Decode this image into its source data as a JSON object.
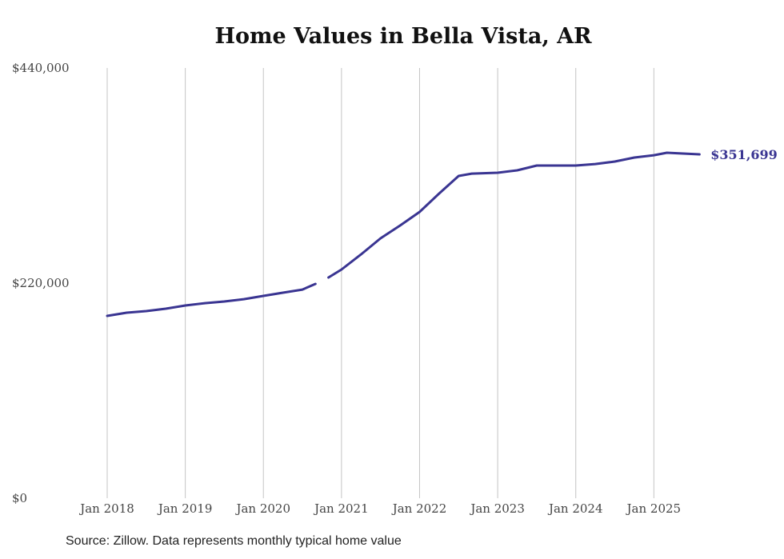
{
  "chart_data": {
    "type": "line",
    "title": "Home Values in Bella Vista, AR",
    "xlabel": "",
    "ylabel": "",
    "ylim": [
      0,
      440000
    ],
    "yticks": [
      0,
      220000,
      440000
    ],
    "ytick_labels": [
      "$0",
      "$220,000",
      "$440,000"
    ],
    "xticks": [
      "2018-01",
      "2019-01",
      "2020-01",
      "2021-01",
      "2022-01",
      "2023-01",
      "2024-01",
      "2025-01"
    ],
    "xtick_labels": [
      "Jan 2018",
      "Jan 2019",
      "Jan 2020",
      "Jan 2021",
      "Jan 2022",
      "Jan 2023",
      "Jan 2024",
      "Jan 2025"
    ],
    "grid": "vertical",
    "series": [
      {
        "name": "Typical home value",
        "color": "#3a3592",
        "points": [
          [
            "2018-01",
            186500
          ],
          [
            "2018-04",
            189700
          ],
          [
            "2018-07",
            191400
          ],
          [
            "2018-10",
            193800
          ],
          [
            "2019-01",
            197100
          ],
          [
            "2019-04",
            199500
          ],
          [
            "2019-07",
            201200
          ],
          [
            "2019-10",
            203600
          ],
          [
            "2020-01",
            206900
          ],
          [
            "2020-04",
            210200
          ],
          [
            "2020-07",
            213400
          ],
          [
            "2020-09",
            219200
          ],
          [
            "2020-10",
            null
          ],
          [
            "2020-11",
            225700
          ],
          [
            "2021-01",
            233900
          ],
          [
            "2021-04",
            249400
          ],
          [
            "2021-07",
            265800
          ],
          [
            "2021-10",
            278900
          ],
          [
            "2022-01",
            292800
          ],
          [
            "2022-04",
            311600
          ],
          [
            "2022-07",
            329600
          ],
          [
            "2022-09",
            332000
          ],
          [
            "2023-01",
            332900
          ],
          [
            "2023-04",
            335300
          ],
          [
            "2023-07",
            340200
          ],
          [
            "2024-01",
            340200
          ],
          [
            "2024-04",
            341800
          ],
          [
            "2024-07",
            344300
          ],
          [
            "2024-10",
            348400
          ],
          [
            "2025-01",
            350800
          ],
          [
            "2025-03",
            353300
          ],
          [
            "2025-08",
            351699
          ]
        ]
      }
    ],
    "end_label": "$351,699"
  },
  "source": "Source: Zillow. Data represents monthly typical home value"
}
